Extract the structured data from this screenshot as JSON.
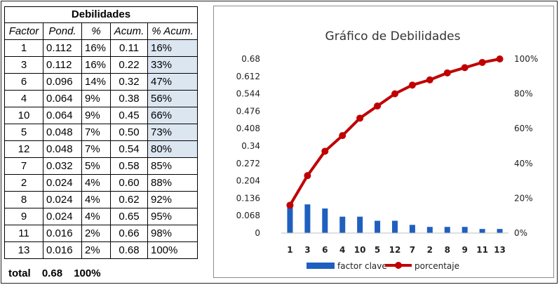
{
  "table": {
    "title": "Debilidades",
    "headers": [
      "Factor",
      "Pond.",
      "%",
      "Acum.",
      "% Acum."
    ],
    "rows": [
      [
        "1",
        "0.112",
        "16%",
        "0.11",
        "16%"
      ],
      [
        "3",
        "0.112",
        "16%",
        "0.22",
        "33%"
      ],
      [
        "6",
        "0.096",
        "14%",
        "0.32",
        "47%"
      ],
      [
        "4",
        "0.064",
        "9%",
        "0.38",
        "56%"
      ],
      [
        "10",
        "0.064",
        "9%",
        "0.45",
        "66%"
      ],
      [
        "5",
        "0.048",
        "7%",
        "0.50",
        "73%"
      ],
      [
        "12",
        "0.048",
        "7%",
        "0.54",
        "80%"
      ],
      [
        "7",
        "0.032",
        "5%",
        "0.58",
        "85%"
      ],
      [
        "2",
        "0.024",
        "4%",
        "0.60",
        "88%"
      ],
      [
        "8",
        "0.024",
        "4%",
        "0.62",
        "92%"
      ],
      [
        "9",
        "0.024",
        "4%",
        "0.65",
        "95%"
      ],
      [
        "11",
        "0.016",
        "2%",
        "0.66",
        "98%"
      ],
      [
        "13",
        "0.016",
        "2%",
        "0.68",
        "100%"
      ]
    ],
    "highlighted_rows": 7,
    "highlight_color": "#dce6f1",
    "total": {
      "label": "total",
      "pond": "0.68",
      "pct": "100%"
    }
  },
  "chart_data": {
    "type": "bar",
    "title": "Gráfico de Debilidades",
    "categories": [
      "1",
      "3",
      "6",
      "4",
      "10",
      "5",
      "12",
      "7",
      "2",
      "8",
      "9",
      "11",
      "13"
    ],
    "series": [
      {
        "name": "factor clave",
        "type": "bar",
        "axis": "left",
        "color": "#1f5fbf",
        "values": [
          0.112,
          0.112,
          0.096,
          0.064,
          0.064,
          0.048,
          0.048,
          0.032,
          0.024,
          0.024,
          0.024,
          0.016,
          0.016
        ]
      },
      {
        "name": "porcentaje",
        "type": "line",
        "axis": "right",
        "color": "#c00000",
        "values": [
          16,
          33,
          47,
          56,
          66,
          73,
          80,
          85,
          88,
          92,
          95,
          98,
          100
        ]
      }
    ],
    "y_left": {
      "ticks": [
        "0",
        "0.068",
        "0.136",
        "0.204",
        "0.272",
        "0.34",
        "0.408",
        "0.476",
        "0.544",
        "0.612",
        "0.68"
      ],
      "ylim": [
        0,
        0.68
      ]
    },
    "y_right": {
      "ticks": [
        "0%",
        "20%",
        "40%",
        "60%",
        "80%",
        "100%"
      ],
      "ylim": [
        0,
        100
      ]
    },
    "legend_position": "bottom",
    "grid": false
  }
}
